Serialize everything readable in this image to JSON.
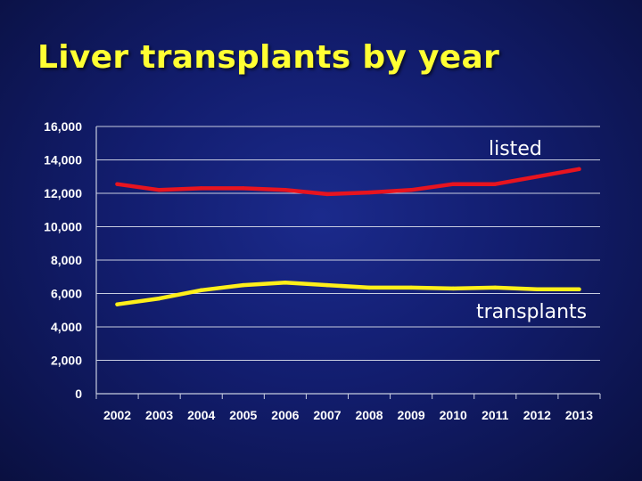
{
  "slide": {
    "title": "Liver transplants by year"
  },
  "colors": {
    "background": "#121d6e",
    "title": "#ffff33",
    "listed": "#e8141f",
    "transplants": "#ffef1a",
    "grid": "#c8cde0"
  },
  "chart_data": {
    "type": "line",
    "title": "Liver transplants by year",
    "xlabel": "",
    "ylabel": "",
    "x": [
      "2002",
      "2003",
      "2004",
      "2005",
      "2006",
      "2007",
      "2008",
      "2009",
      "2010",
      "2011",
      "2012",
      "2013"
    ],
    "ylim": [
      0,
      16000
    ],
    "yticks": [
      0,
      2000,
      4000,
      6000,
      8000,
      10000,
      12000,
      14000,
      16000
    ],
    "ytick_labels": [
      "0",
      "2,000",
      "4,000",
      "6,000",
      "8,000",
      "10,000",
      "12,000",
      "14,000",
      "16,000"
    ],
    "grid": true,
    "legend": "none (series labeled directly on chart)",
    "series": [
      {
        "name": "listed",
        "color": "#e8141f",
        "values": [
          12550,
          12200,
          12300,
          12300,
          12200,
          11950,
          12050,
          12200,
          12550,
          12550,
          13000,
          13450
        ]
      },
      {
        "name": "transplants",
        "color": "#ffef1a",
        "values": [
          5350,
          5700,
          6200,
          6500,
          6650,
          6500,
          6350,
          6350,
          6300,
          6350,
          6250,
          6250
        ]
      }
    ]
  }
}
